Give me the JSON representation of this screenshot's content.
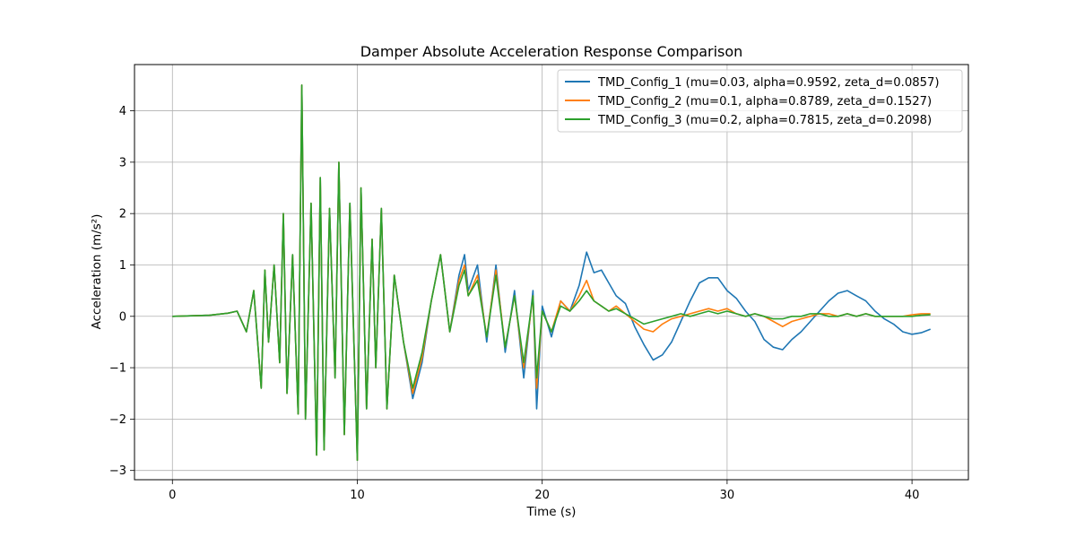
{
  "chart_data": {
    "type": "line",
    "title": "Damper Absolute Acceleration Response Comparison",
    "xlabel": "Time (s)",
    "ylabel": "Acceleration (m/s²)",
    "xlim": [
      -2.05,
      43.05
    ],
    "ylim": [
      -3.18,
      4.9
    ],
    "xticks": [
      0,
      10,
      20,
      30,
      40
    ],
    "xtick_labels": [
      "0",
      "10",
      "20",
      "30",
      "40"
    ],
    "yticks": [
      -3,
      -2,
      -1,
      0,
      1,
      2,
      3,
      4
    ],
    "ytick_labels": [
      "−3",
      "−2",
      "−1",
      "0",
      "1",
      "2",
      "3",
      "4"
    ],
    "grid": true,
    "legend_position": "top-right",
    "colors": {
      "config_1": "#1f77b4",
      "config_2": "#ff7f0e",
      "config_3": "#2ca02c",
      "grid": "#b0b0b0"
    },
    "series": [
      {
        "name": "TMD_Config_1 (mu=0.03, alpha=0.9592, zeta_d=0.0857)",
        "color": "#1f77b4",
        "x": [
          0,
          2,
          3,
          3.5,
          4,
          4.4,
          4.8,
          5.0,
          5.2,
          5.5,
          5.8,
          6.0,
          6.2,
          6.5,
          6.8,
          7.0,
          7.2,
          7.5,
          7.8,
          8.0,
          8.2,
          8.5,
          8.8,
          9.0,
          9.3,
          9.6,
          10.0,
          10.2,
          10.5,
          10.8,
          11.0,
          11.3,
          11.6,
          12.0,
          12.5,
          13.0,
          13.5,
          14.0,
          14.5,
          15.0,
          15.5,
          15.8,
          16.0,
          16.5,
          17.0,
          17.5,
          18.0,
          18.5,
          19.0,
          19.5,
          19.7,
          20.0,
          20.5,
          21.0,
          21.5,
          22.0,
          22.4,
          22.8,
          23.2,
          23.6,
          24.0,
          24.5,
          25.0,
          25.5,
          26.0,
          26.5,
          27.0,
          27.5,
          28.0,
          28.5,
          29.0,
          29.5,
          30.0,
          30.5,
          31.0,
          31.5,
          32.0,
          32.5,
          33.0,
          33.5,
          34.0,
          34.5,
          35.0,
          35.5,
          36.0,
          36.5,
          37.0,
          37.5,
          38.0,
          38.5,
          39.0,
          39.5,
          40.0,
          40.5,
          41.0
        ],
        "values": [
          0,
          0.02,
          0.06,
          0.1,
          -0.3,
          0.5,
          -1.4,
          0.9,
          -0.5,
          1.0,
          -0.9,
          2.0,
          -1.5,
          1.2,
          -1.9,
          4.5,
          -2.0,
          2.2,
          -2.7,
          2.7,
          -2.6,
          2.1,
          -1.2,
          3.0,
          -2.3,
          2.2,
          -2.8,
          2.5,
          -1.8,
          1.5,
          -1.0,
          2.1,
          -1.8,
          0.8,
          -0.5,
          -1.6,
          -0.9,
          0.3,
          1.2,
          -0.3,
          0.8,
          1.2,
          0.5,
          1.0,
          -0.5,
          1.0,
          -0.7,
          0.5,
          -1.2,
          0.5,
          -1.8,
          0.2,
          -0.4,
          0.3,
          0.1,
          0.6,
          1.25,
          0.85,
          0.9,
          0.65,
          0.4,
          0.25,
          -0.2,
          -0.55,
          -0.85,
          -0.75,
          -0.5,
          -0.1,
          0.3,
          0.65,
          0.75,
          0.75,
          0.5,
          0.35,
          0.1,
          -0.1,
          -0.45,
          -0.6,
          -0.65,
          -0.45,
          -0.3,
          -0.1,
          0.1,
          0.3,
          0.45,
          0.5,
          0.4,
          0.3,
          0.1,
          -0.05,
          -0.15,
          -0.3,
          -0.35,
          -0.32,
          -0.25
        ]
      },
      {
        "name": "TMD_Config_2 (mu=0.1, alpha=0.8789, zeta_d=0.1527)",
        "color": "#ff7f0e",
        "x": [
          0,
          2,
          3,
          3.5,
          4,
          4.4,
          4.8,
          5.0,
          5.2,
          5.5,
          5.8,
          6.0,
          6.2,
          6.5,
          6.8,
          7.0,
          7.2,
          7.5,
          7.8,
          8.0,
          8.2,
          8.5,
          8.8,
          9.0,
          9.3,
          9.6,
          10.0,
          10.2,
          10.5,
          10.8,
          11.0,
          11.3,
          11.6,
          12.0,
          12.5,
          13.0,
          13.5,
          14.0,
          14.5,
          15.0,
          15.5,
          15.8,
          16.0,
          16.5,
          17.0,
          17.5,
          18.0,
          18.5,
          19.0,
          19.5,
          19.7,
          20.0,
          20.5,
          21.0,
          21.5,
          22.0,
          22.4,
          22.8,
          23.2,
          23.6,
          24.0,
          24.5,
          25.0,
          25.5,
          26.0,
          26.5,
          27.0,
          27.5,
          28.0,
          28.5,
          29.0,
          29.5,
          30.0,
          30.5,
          31.0,
          31.5,
          32.0,
          32.5,
          33.0,
          33.5,
          34.0,
          34.5,
          35.0,
          35.5,
          36.0,
          36.5,
          37.0,
          37.5,
          38.0,
          38.5,
          39.0,
          39.5,
          40.0,
          40.5,
          41.0
        ],
        "values": [
          0,
          0.02,
          0.06,
          0.1,
          -0.3,
          0.5,
          -1.4,
          0.9,
          -0.5,
          1.0,
          -0.9,
          2.0,
          -1.5,
          1.2,
          -1.9,
          4.5,
          -2.0,
          2.2,
          -2.7,
          2.7,
          -2.6,
          2.1,
          -1.2,
          3.0,
          -2.3,
          2.2,
          -2.8,
          2.5,
          -1.8,
          1.5,
          -1.0,
          2.1,
          -1.8,
          0.8,
          -0.5,
          -1.5,
          -0.8,
          0.3,
          1.2,
          -0.3,
          0.7,
          1.0,
          0.4,
          0.8,
          -0.4,
          0.9,
          -0.6,
          0.4,
          -1.0,
          0.4,
          -1.4,
          0.1,
          -0.3,
          0.3,
          0.1,
          0.4,
          0.7,
          0.3,
          0.2,
          0.1,
          0.2,
          0.05,
          -0.1,
          -0.25,
          -0.3,
          -0.15,
          -0.05,
          0.0,
          0.05,
          0.1,
          0.15,
          0.1,
          0.15,
          0.05,
          0.0,
          0.05,
          0.0,
          -0.1,
          -0.2,
          -0.1,
          -0.05,
          0.0,
          0.05,
          0.05,
          0.0,
          0.05,
          0.0,
          0.05,
          0.0,
          0.0,
          0.0,
          0.0,
          0.03,
          0.05,
          0.05
        ]
      },
      {
        "name": "TMD_Config_3 (mu=0.2, alpha=0.7815, zeta_d=0.2098)",
        "color": "#2ca02c",
        "x": [
          0,
          2,
          3,
          3.5,
          4,
          4.4,
          4.8,
          5.0,
          5.2,
          5.5,
          5.8,
          6.0,
          6.2,
          6.5,
          6.8,
          7.0,
          7.2,
          7.5,
          7.8,
          8.0,
          8.2,
          8.5,
          8.8,
          9.0,
          9.3,
          9.6,
          10.0,
          10.2,
          10.5,
          10.8,
          11.0,
          11.3,
          11.6,
          12.0,
          12.5,
          13.0,
          13.5,
          14.0,
          14.5,
          15.0,
          15.5,
          15.8,
          16.0,
          16.5,
          17.0,
          17.5,
          18.0,
          18.5,
          19.0,
          19.5,
          19.7,
          20.0,
          20.5,
          21.0,
          21.5,
          22.0,
          22.4,
          22.8,
          23.2,
          23.6,
          24.0,
          24.5,
          25.0,
          25.5,
          26.0,
          26.5,
          27.0,
          27.5,
          28.0,
          28.5,
          29.0,
          29.5,
          30.0,
          30.5,
          31.0,
          31.5,
          32.0,
          32.5,
          33.0,
          33.5,
          34.0,
          34.5,
          35.0,
          35.5,
          36.0,
          36.5,
          37.0,
          37.5,
          38.0,
          38.5,
          39.0,
          39.5,
          40.0,
          40.5,
          41.0
        ],
        "values": [
          0,
          0.02,
          0.06,
          0.1,
          -0.3,
          0.5,
          -1.4,
          0.9,
          -0.5,
          1.0,
          -0.9,
          2.0,
          -1.5,
          1.2,
          -1.9,
          4.5,
          -2.0,
          2.2,
          -2.7,
          2.7,
          -2.6,
          2.1,
          -1.2,
          3.0,
          -2.3,
          2.2,
          -2.8,
          2.5,
          -1.8,
          1.5,
          -1.0,
          2.1,
          -1.8,
          0.8,
          -0.5,
          -1.4,
          -0.7,
          0.3,
          1.2,
          -0.3,
          0.6,
          0.9,
          0.4,
          0.7,
          -0.4,
          0.8,
          -0.6,
          0.4,
          -0.9,
          0.4,
          -1.2,
          0.1,
          -0.3,
          0.2,
          0.1,
          0.3,
          0.5,
          0.3,
          0.2,
          0.1,
          0.15,
          0.05,
          -0.05,
          -0.15,
          -0.1,
          -0.05,
          0.0,
          0.05,
          0.0,
          0.05,
          0.1,
          0.05,
          0.1,
          0.05,
          0.0,
          0.05,
          0.0,
          -0.05,
          -0.05,
          0.0,
          0.0,
          0.05,
          0.05,
          0.0,
          0.0,
          0.05,
          0.0,
          0.05,
          0.0,
          0.0,
          0.0,
          0.0,
          0.0,
          0.02,
          0.03
        ]
      }
    ]
  }
}
